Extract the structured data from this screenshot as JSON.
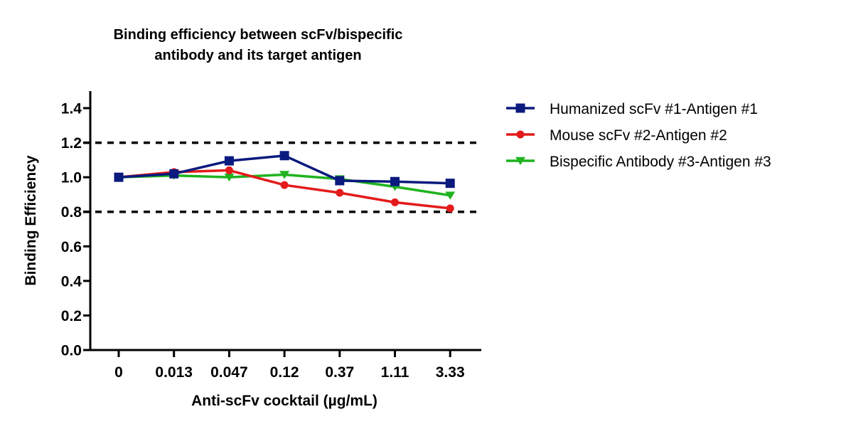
{
  "chart_data": {
    "type": "line",
    "title": [
      "Binding efficiency between scFv/bispecific",
      "antibody and its target antigen"
    ],
    "xlabel": "Anti-scFv cocktail (µg/mL)",
    "ylabel": "Binding Efficiency",
    "categories": [
      "0",
      "0.013",
      "0.047",
      "0.12",
      "0.37",
      "1.11",
      "3.33"
    ],
    "ylim": [
      0,
      1.4
    ],
    "yticks": [
      0.0,
      0.2,
      0.4,
      0.6,
      0.8,
      1.0,
      1.2,
      1.4
    ],
    "ytick_labels": [
      "0.0",
      "0.2",
      "0.4",
      "0.6",
      "0.8",
      "1.0",
      "1.2",
      "1.4"
    ],
    "reference_lines": [
      {
        "y": 1.2,
        "style": "dashed",
        "color": "#000000"
      },
      {
        "y": 0.8,
        "style": "dashed",
        "color": "#000000"
      }
    ],
    "grid": false,
    "legend_position": "right",
    "series": [
      {
        "name": "Humanized scFv #1-Antigen #1",
        "color": "#0a1a7e",
        "marker": "square",
        "values": [
          1.0,
          1.02,
          1.095,
          1.125,
          0.98,
          0.975,
          0.965
        ]
      },
      {
        "name": "Mouse scFv #2-Antigen #2",
        "color": "#e41b1b",
        "marker": "circle",
        "values": [
          1.0,
          1.03,
          1.04,
          0.955,
          0.91,
          0.855,
          0.82
        ]
      },
      {
        "name": "Bispecific Antibody #3-Antigen #3",
        "color": "#1fb31f",
        "marker": "triangle-down",
        "values": [
          1.0,
          1.01,
          1.0,
          1.015,
          0.99,
          0.945,
          0.895
        ]
      }
    ]
  }
}
